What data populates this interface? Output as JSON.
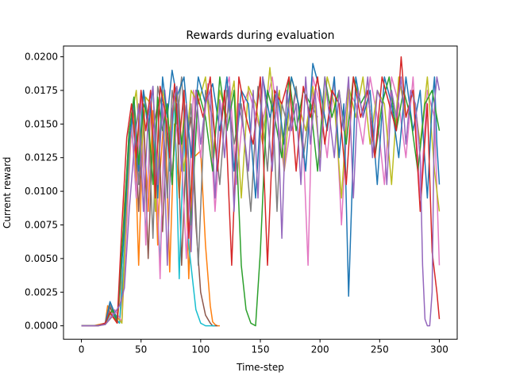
{
  "chart_data": {
    "type": "line",
    "title": "Rewards during evaluation",
    "xlabel": "Time-step",
    "ylabel": "Current reward",
    "xlim": [
      -15,
      315
    ],
    "ylim": [
      -0.001,
      0.0208
    ],
    "xticks": [
      0,
      50,
      100,
      150,
      200,
      250,
      300
    ],
    "xtick_labels": [
      "0",
      "50",
      "100",
      "150",
      "200",
      "250",
      "300"
    ],
    "yticks": [
      0,
      0.0025,
      0.005,
      0.0075,
      0.01,
      0.0125,
      0.015,
      0.0175,
      0.02
    ],
    "ytick_labels": [
      "0.0000",
      "0.0025",
      "0.0050",
      "0.0075",
      "0.0100",
      "0.0125",
      "0.0150",
      "0.0175",
      "0.0200"
    ],
    "grid": false,
    "legend": "none",
    "colors": [
      "#1f77b4",
      "#ff7f0e",
      "#2ca02c",
      "#d62728",
      "#9467bd",
      "#8c564b",
      "#e377c2",
      "#7f7f7f",
      "#bcbd22",
      "#17becf"
    ],
    "series": [
      {
        "color": "#ff7f0e",
        "x": [
          0,
          10,
          20,
          22,
          25,
          30,
          33,
          36,
          40,
          44,
          48,
          52,
          56,
          60,
          64,
          66,
          70,
          74,
          78,
          82,
          86,
          90,
          94,
          100,
          104,
          108,
          110,
          112,
          114,
          116
        ],
        "y": [
          0,
          0,
          0.0002,
          0.0015,
          0.0008,
          0.0002,
          0.003,
          0.009,
          0.0135,
          0.016,
          0.0045,
          0.0155,
          0.0085,
          0.016,
          0.006,
          0.0115,
          0.0165,
          0.004,
          0.015,
          0.0095,
          0.016,
          0.0035,
          0.0125,
          0.013,
          0.006,
          0.0015,
          0.0003,
          0.0001,
          0,
          0
        ]
      },
      {
        "color": "#8c564b",
        "x": [
          0,
          10,
          20,
          24,
          28,
          32,
          36,
          40,
          44,
          48,
          52,
          56,
          60,
          64,
          68,
          72,
          76,
          80,
          84,
          88,
          92,
          96,
          100,
          104,
          108,
          110,
          112,
          114
        ],
        "y": [
          0,
          0,
          0.0001,
          0.0014,
          0.0005,
          0.0002,
          0.0045,
          0.0125,
          0.0165,
          0.0085,
          0.016,
          0.005,
          0.0145,
          0.0165,
          0.007,
          0.0155,
          0.0105,
          0.0165,
          0.0045,
          0.0135,
          0.0155,
          0.0075,
          0.0025,
          0.0008,
          0.0002,
          0,
          0,
          0
        ]
      },
      {
        "color": "#17becf",
        "x": [
          0,
          12,
          20,
          26,
          32,
          36,
          40,
          42,
          46,
          50,
          54,
          58,
          62,
          66,
          70,
          74,
          78,
          82,
          86,
          90,
          96,
          100,
          104,
          108,
          112
        ],
        "y": [
          0,
          0,
          0.0001,
          0.0009,
          0.0002,
          0.006,
          0.0145,
          0.0155,
          0.0095,
          0.017,
          0.0065,
          0.016,
          0.0125,
          0.0045,
          0.016,
          0.0115,
          0.017,
          0.0035,
          0.0145,
          0.006,
          0.0012,
          0.0002,
          0,
          0,
          0
        ]
      },
      {
        "color": "#e377c2",
        "x": [
          0,
          14,
          22,
          28,
          34,
          38,
          42,
          46,
          50,
          54,
          58,
          62,
          66,
          70,
          76,
          82,
          88,
          94,
          100,
          106,
          112,
          118,
          124,
          130,
          136,
          140,
          150,
          160,
          170,
          180,
          186,
          190,
          194,
          200,
          206,
          212,
          218,
          224,
          230,
          236,
          242,
          248,
          254,
          260,
          266,
          272,
          278,
          284,
          290,
          296,
          300
        ],
        "y": [
          0,
          0,
          0.0003,
          0.0012,
          0.0003,
          0.0075,
          0.015,
          0.0095,
          0.0175,
          0.006,
          0.016,
          0.0135,
          0.0035,
          0.0175,
          0.0115,
          0.0165,
          0.005,
          0.0175,
          0.0125,
          0.018,
          0.0085,
          0.0165,
          0.0185,
          0.0105,
          0.0165,
          0.0175,
          0.0145,
          0.0185,
          0.0115,
          0.0175,
          0.0135,
          0.0045,
          0.0185,
          0.0165,
          0.0125,
          0.0185,
          0.0075,
          0.0175,
          0.0165,
          0.0135,
          0.0185,
          0.0155,
          0.0105,
          0.0185,
          0.0165,
          0.0125,
          0.0185,
          0.0095,
          0.0175,
          0.0155,
          0.0045
        ]
      },
      {
        "color": "#7f7f7f",
        "x": [
          0,
          14,
          20,
          24,
          30,
          36,
          40,
          44,
          48,
          52,
          56,
          60,
          64,
          68,
          72,
          76,
          80,
          84,
          88,
          92,
          98,
          104,
          110,
          116,
          122,
          128,
          134,
          138,
          142,
          148,
          152,
          156,
          160,
          164,
          168,
          174,
          180,
          186,
          192,
          198
        ],
        "y": [
          0,
          0,
          0.0002,
          0.0016,
          0.0004,
          0.008,
          0.0145,
          0.0165,
          0.0105,
          0.0175,
          0.0155,
          0.0065,
          0.0178,
          0.016,
          0.0095,
          0.0175,
          0.015,
          0.0185,
          0.0125,
          0.0165,
          0.0045,
          0.0175,
          0.0155,
          0.0105,
          0.0175,
          0.0135,
          0.0165,
          0.0125,
          0.0085,
          0.0178,
          0.0155,
          0.0115,
          0.0175,
          0.0085,
          0.0165,
          0.0145,
          0.0178,
          0.0125,
          0.0165,
          0.0155
        ]
      },
      {
        "color": "#bcbd22",
        "x": [
          0,
          14,
          20,
          28,
          34,
          38,
          42,
          46,
          50,
          54,
          58,
          62,
          68,
          74,
          80,
          86,
          92,
          98,
          104,
          110,
          116,
          122,
          128,
          134,
          140,
          146,
          152,
          158,
          162,
          166,
          170,
          176,
          182,
          188,
          194,
          200,
          206,
          212,
          218,
          224,
          230,
          236,
          242,
          248,
          254,
          260,
          266,
          272,
          278,
          284,
          290,
          296,
          300
        ],
        "y": [
          0,
          0,
          0.0001,
          0.0009,
          0.0002,
          0.0095,
          0.0155,
          0.0175,
          0.0125,
          0.017,
          0.0165,
          0.0085,
          0.0175,
          0.0145,
          0.0178,
          0.0115,
          0.0175,
          0.0165,
          0.0185,
          0.0125,
          0.0175,
          0.0155,
          0.0182,
          0.0095,
          0.0178,
          0.0165,
          0.0135,
          0.0192,
          0.0155,
          0.0175,
          0.0115,
          0.0185,
          0.0165,
          0.0145,
          0.0178,
          0.0125,
          0.0185,
          0.0165,
          0.0095,
          0.0178,
          0.0155,
          0.0185,
          0.0135,
          0.0175,
          0.0165,
          0.0105,
          0.0185,
          0.0155,
          0.0175,
          0.0135,
          0.0185,
          0.0115,
          0.0085
        ]
      },
      {
        "color": "#1f77b4",
        "x": [
          0,
          14,
          20,
          24,
          30,
          36,
          40,
          44,
          48,
          52,
          56,
          60,
          64,
          68,
          72,
          76,
          80,
          86,
          92,
          98,
          104,
          110,
          116,
          122,
          128,
          134,
          140,
          146,
          152,
          158,
          164,
          170,
          176,
          182,
          188,
          194,
          200,
          206,
          212,
          216,
          220,
          224,
          230,
          236,
          242,
          248,
          254,
          260,
          266,
          272,
          278,
          284,
          290,
          294,
          296,
          298,
          300
        ],
        "y": [
          0,
          0,
          0.0002,
          0.0018,
          0.0005,
          0.007,
          0.0135,
          0.0168,
          0.0115,
          0.0175,
          0.0145,
          0.0178,
          0.0095,
          0.0185,
          0.0155,
          0.019,
          0.017,
          0.0185,
          0.0125,
          0.0185,
          0.0165,
          0.018,
          0.0145,
          0.0185,
          0.0115,
          0.0175,
          0.0165,
          0.0095,
          0.0185,
          0.0155,
          0.0175,
          0.0135,
          0.0185,
          0.0165,
          0.0115,
          0.0195,
          0.0175,
          0.0145,
          0.0185,
          0.0125,
          0.0165,
          0.0022,
          0.0185,
          0.0155,
          0.0175,
          0.0105,
          0.0185,
          0.0165,
          0.0125,
          0.0185,
          0.0145,
          0.0175,
          0.0095,
          0.0165,
          0.0185,
          0.0135,
          0.0105
        ]
      },
      {
        "color": "#2ca02c",
        "x": [
          0,
          14,
          20,
          26,
          30,
          36,
          40,
          44,
          48,
          52,
          56,
          60,
          64,
          68,
          72,
          76,
          80,
          84,
          88,
          92,
          98,
          104,
          110,
          116,
          122,
          128,
          134,
          138,
          142,
          146,
          150,
          156,
          162,
          168,
          174,
          180,
          186,
          192,
          198,
          204,
          210,
          216,
          222,
          228,
          234,
          240,
          246,
          252,
          258,
          264,
          270,
          276,
          282,
          288,
          294,
          298,
          300
        ],
        "y": [
          0,
          0,
          0.0002,
          0.0012,
          0.0003,
          0.0085,
          0.0145,
          0.017,
          0.012,
          0.0165,
          0.0155,
          0.0105,
          0.017,
          0.0145,
          0.0165,
          0.0105,
          0.0175,
          0.0135,
          0.0165,
          0.0075,
          0.0175,
          0.0155,
          0.0115,
          0.0185,
          0.0145,
          0.0175,
          0.0045,
          0.0012,
          0.0002,
          0,
          0.0055,
          0.0175,
          0.0155,
          0.0125,
          0.0185,
          0.0145,
          0.0175,
          0.0165,
          0.0115,
          0.0185,
          0.0155,
          0.0175,
          0.0135,
          0.0185,
          0.0165,
          0.0175,
          0.0125,
          0.0165,
          0.0185,
          0.0145,
          0.0175,
          0.0155,
          0.0115,
          0.0165,
          0.0175,
          0.0155,
          0.0145
        ]
      },
      {
        "color": "#d62728",
        "x": [
          0,
          14,
          20,
          24,
          30,
          34,
          38,
          42,
          46,
          50,
          54,
          58,
          62,
          66,
          70,
          74,
          78,
          82,
          86,
          90,
          96,
          102,
          108,
          114,
          120,
          126,
          132,
          138,
          144,
          150,
          156,
          162,
          168,
          174,
          180,
          186,
          192,
          198,
          204,
          210,
          216,
          222,
          228,
          234,
          240,
          246,
          252,
          258,
          264,
          268,
          272,
          278,
          284,
          290,
          294,
          298,
          300
        ],
        "y": [
          0,
          0,
          0.0002,
          0.001,
          0.0002,
          0.0075,
          0.014,
          0.0165,
          0.0125,
          0.0175,
          0.0145,
          0.0175,
          0.0095,
          0.0178,
          0.016,
          0.0125,
          0.018,
          0.0135,
          0.0175,
          0.0065,
          0.0175,
          0.0155,
          0.0185,
          0.0115,
          0.0175,
          0.0045,
          0.0185,
          0.0155,
          0.0135,
          0.0185,
          0.0045,
          0.0175,
          0.0165,
          0.0185,
          0.0115,
          0.0178,
          0.0155,
          0.0185,
          0.0135,
          0.0175,
          0.0165,
          0.0105,
          0.0185,
          0.0155,
          0.0175,
          0.0125,
          0.0185,
          0.0165,
          0.0145,
          0.02,
          0.0155,
          0.0175,
          0.0085,
          0.0165,
          0.0055,
          0.0025,
          0.0005
        ]
      },
      {
        "color": "#9467bd",
        "x": [
          0,
          14,
          20,
          26,
          32,
          36,
          40,
          44,
          48,
          52,
          56,
          60,
          64,
          68,
          72,
          76,
          80,
          84,
          88,
          92,
          96,
          100,
          104,
          108,
          112,
          116,
          120,
          124,
          128,
          132,
          136,
          140,
          144,
          148,
          152,
          156,
          160,
          164,
          168,
          172,
          176,
          180,
          184,
          188,
          192,
          196,
          200,
          204,
          208,
          212,
          216,
          220,
          224,
          228,
          232,
          236,
          240,
          244,
          248,
          252,
          256,
          260,
          264,
          268,
          272,
          276,
          280,
          284,
          286,
          288,
          290,
          292,
          294,
          296,
          298,
          300
        ],
        "y": [
          0,
          0,
          0.0001,
          0.0007,
          0.0015,
          0.0028,
          0.0085,
          0.013,
          0.0165,
          0.0085,
          0.0155,
          0.0178,
          0.0105,
          0.0165,
          0.0045,
          0.016,
          0.0178,
          0.0115,
          0.0165,
          0.0055,
          0.0175,
          0.0135,
          0.0165,
          0.0175,
          0.0095,
          0.0168,
          0.0125,
          0.0178,
          0.0085,
          0.0165,
          0.0145,
          0.0115,
          0.0175,
          0.0095,
          0.0185,
          0.0155,
          0.0115,
          0.0178,
          0.0065,
          0.0175,
          0.0145,
          0.0165,
          0.0105,
          0.0185,
          0.0135,
          0.0175,
          0.0115,
          0.0185,
          0.0155,
          0.0125,
          0.0175,
          0.0145,
          0.0185,
          0.0095,
          0.0175,
          0.0155,
          0.0185,
          0.0125,
          0.0175,
          0.0165,
          0.0105,
          0.0175,
          0.0155,
          0.0185,
          0.0135,
          0.0175,
          0.0165,
          0.0125,
          0.0045,
          0.0005,
          0,
          0,
          0.0025,
          0.0165,
          0.0185,
          0.0175
        ]
      }
    ]
  }
}
